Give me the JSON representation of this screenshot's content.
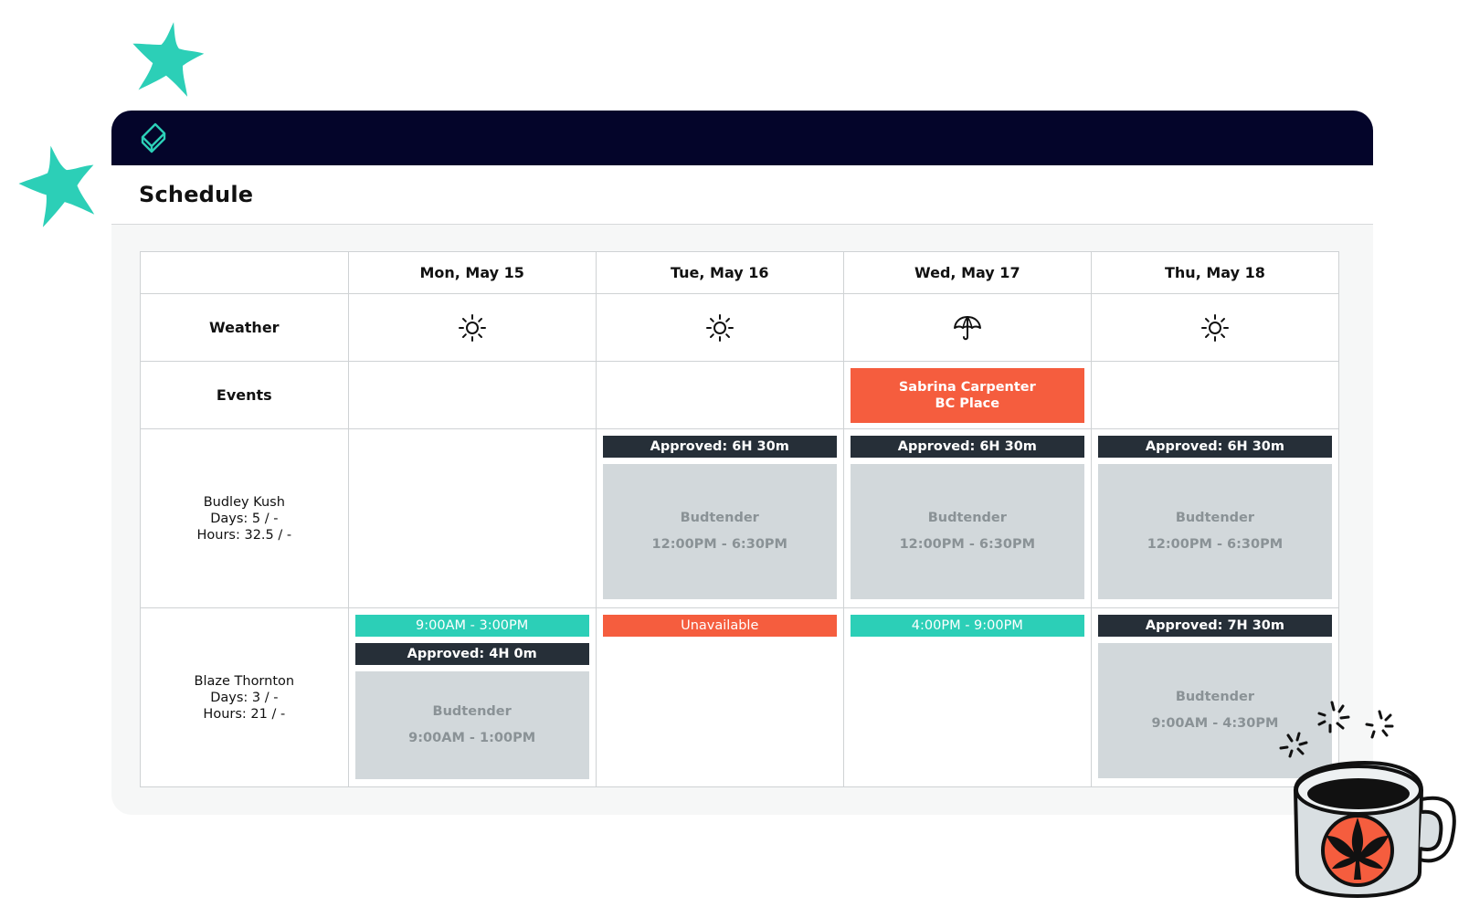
{
  "app": {
    "page_title": "Schedule"
  },
  "colors": {
    "topbar": "#04052a",
    "accent_teal": "#2ccfb7",
    "accent_orange": "#f55d3e",
    "approved_bar": "#262f38",
    "shift_block": "#d2d8db"
  },
  "schedule": {
    "days": [
      "Mon, May 15",
      "Tue, May 16",
      "Wed, May 17",
      "Thu, May 18"
    ],
    "row_labels": {
      "weather": "Weather",
      "events": "Events"
    },
    "weather": [
      "sun-icon",
      "sun-icon",
      "umbrella-icon",
      "sun-icon"
    ],
    "events": {
      "wed": {
        "line1": "Sabrina Carpenter",
        "line2": "BC Place"
      }
    },
    "staff": [
      {
        "name": "Budley Kush",
        "days": "Days: 5 / -",
        "hours": "Hours: 32.5 / -",
        "tue": {
          "approved": "Approved: 6H 30m",
          "role": "Budtender",
          "time": "12:00PM - 6:30PM"
        },
        "wed": {
          "approved": "Approved: 6H 30m",
          "role": "Budtender",
          "time": "12:00PM - 6:30PM"
        },
        "thu": {
          "approved": "Approved: 6H 30m",
          "role": "Budtender",
          "time": "12:00PM - 6:30PM"
        }
      },
      {
        "name": "Blaze Thornton",
        "days": "Days: 3 / -",
        "hours": "Hours: 21 / -",
        "mon": {
          "availability": "9:00AM - 3:00PM",
          "approved": "Approved: 4H 0m",
          "role": "Budtender",
          "time": "9:00AM - 1:00PM"
        },
        "tue": {
          "availability": "Unavailable"
        },
        "wed": {
          "availability": "4:00PM - 9:00PM"
        },
        "thu": {
          "approved": "Approved: 7H 30m",
          "role": "Budtender",
          "time": "9:00AM - 4:30PM"
        }
      }
    ]
  }
}
